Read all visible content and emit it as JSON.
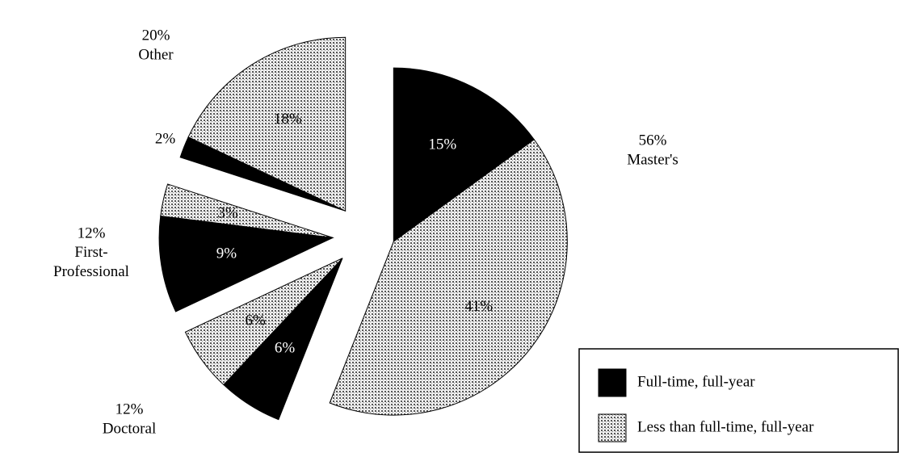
{
  "chart_data": {
    "type": "pie",
    "categories": [
      "Master's",
      "Doctoral",
      "First-Professional",
      "Other"
    ],
    "totals": [
      56,
      12,
      12,
      20
    ],
    "total_labels": [
      "56%",
      "12%",
      "12%",
      "20%"
    ],
    "series": [
      {
        "name": "Full-time, full-year",
        "color": "#000000",
        "values": [
          15,
          6,
          9,
          2
        ],
        "value_labels": [
          "15%",
          "6%",
          "9%",
          "2%"
        ]
      },
      {
        "name": "Less than full-time, full-year",
        "color": "dotted",
        "values": [
          41,
          6,
          3,
          18
        ],
        "value_labels": [
          "41%",
          "6%",
          "3%",
          "18%"
        ]
      }
    ],
    "legend": "lower right"
  }
}
